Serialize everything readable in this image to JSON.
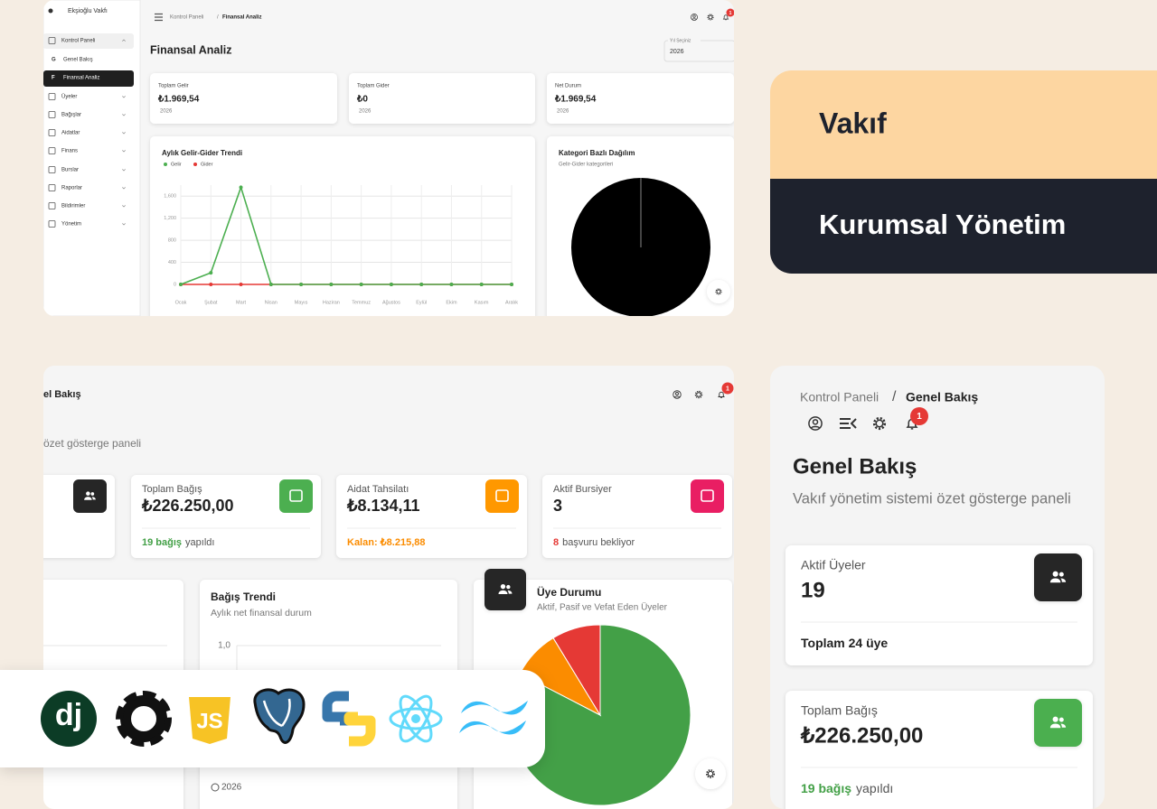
{
  "sidebar": {
    "brand": "Ekşioğlu Vakfı",
    "sub_initials": [
      "G",
      "F"
    ],
    "menu": [
      "Kontrol Paneli",
      "Genel Bakış",
      "Finansal Analiz",
      "Üyeler",
      "Bağışlar",
      "Aidatlar",
      "Finans",
      "Burslar",
      "Raporlar",
      "Bildirimler",
      "Yönetim"
    ]
  },
  "finance": {
    "breadcrumb": {
      "parent": "Kontrol Paneli",
      "separator": "/",
      "current": "Finansal Analiz"
    },
    "badge": "1",
    "title": "Finansal Analiz",
    "year_select": {
      "label": "Yıl Seçiniz",
      "value": "2026"
    },
    "cards": [
      {
        "label": "Toplam Gelir",
        "value": "₺1.969,54",
        "year": "2026"
      },
      {
        "label": "Toplam Gider",
        "value": "₺0",
        "year": "2026"
      },
      {
        "label": "Net Durum",
        "value": "₺1.969,54",
        "year": "2026"
      }
    ],
    "category_chart": {
      "title": "Kategori Bazlı Dağılım",
      "subtitle": "Gelir-Gider kategorileri"
    }
  },
  "hero": {
    "title": "Vakıf",
    "subtitle": "Kurumsal Yönetim"
  },
  "dashboard": {
    "title": "el Bakış",
    "badge": "1",
    "subtitle": "özet gösterge paneli",
    "cards": [
      {
        "label": "Toplam Bağış",
        "value": "₺226.250,00",
        "note_strong": "19 bağış",
        "note": "yapıldı"
      },
      {
        "label": "Aidat Tahsilatı",
        "value": "₺8.134,11",
        "note_strong": "Kalan: ₺8.215,88"
      },
      {
        "label": "Aktif Bursiyer",
        "value": "3",
        "note_strong": "8",
        "note": "başvuru bekliyor"
      }
    ],
    "trend_footer": "2026"
  },
  "mobile": {
    "breadcrumb": {
      "parent": "Kontrol Paneli",
      "separator": "/",
      "current": "Genel Bakış"
    },
    "badge": "1",
    "title": "Genel Bakış",
    "subtitle": "Vakıf yönetim sistemi özet gösterge paneli",
    "cards": [
      {
        "label": "Aktif Üyeler",
        "value": "19",
        "note_strong": "Toplam 24 üye"
      },
      {
        "label": "Toplam Bağış",
        "value": "₺226.250,00",
        "note_strong": "19 bağış",
        "note": "yapıldı"
      }
    ]
  },
  "tech_stack": {
    "logos": [
      "dj",
      "JS"
    ]
  },
  "chart_data": [
    {
      "type": "line",
      "title": "Aylık Gelir-Gider Trendi",
      "categories": [
        "Ocak",
        "Şubat",
        "Mart",
        "Nisan",
        "Mayıs",
        "Haziran",
        "Temmuz",
        "Ağustos",
        "Eylül",
        "Ekim",
        "Kasım",
        "Aralık"
      ],
      "series": [
        {
          "name": "Gelir",
          "color": "#4caf50",
          "values": [
            0,
            210,
            1760,
            0,
            0,
            0,
            0,
            0,
            0,
            0,
            0,
            0
          ]
        },
        {
          "name": "Gider",
          "color": "#e53935",
          "values": [
            0,
            0,
            0,
            0,
            0,
            0,
            0,
            0,
            0,
            0,
            0,
            0
          ]
        }
      ],
      "ylim": [
        0,
        1800
      ],
      "yticks": [
        0,
        400,
        800,
        {
          "value": 1200,
          "label": "1,200"
        },
        {
          "value": 1600,
          "label": "1,600"
        }
      ],
      "grid": true
    },
    {
      "type": "line",
      "title": "Bağış Trendi",
      "subtitle": "Aylık net finansal durum",
      "ylim": [
        0,
        1
      ],
      "yticks": [
        {
          "value": 1,
          "label": "1,0"
        }
      ],
      "grid": true
    },
    {
      "type": "pie",
      "title": "Üye Durumu",
      "subtitle": "Aktif, Pasif ve Vefat Eden Üyeler",
      "values": [
        19,
        2,
        2
      ],
      "colors": [
        "#43a047",
        "#fb8c00",
        "#e53935"
      ]
    }
  ]
}
